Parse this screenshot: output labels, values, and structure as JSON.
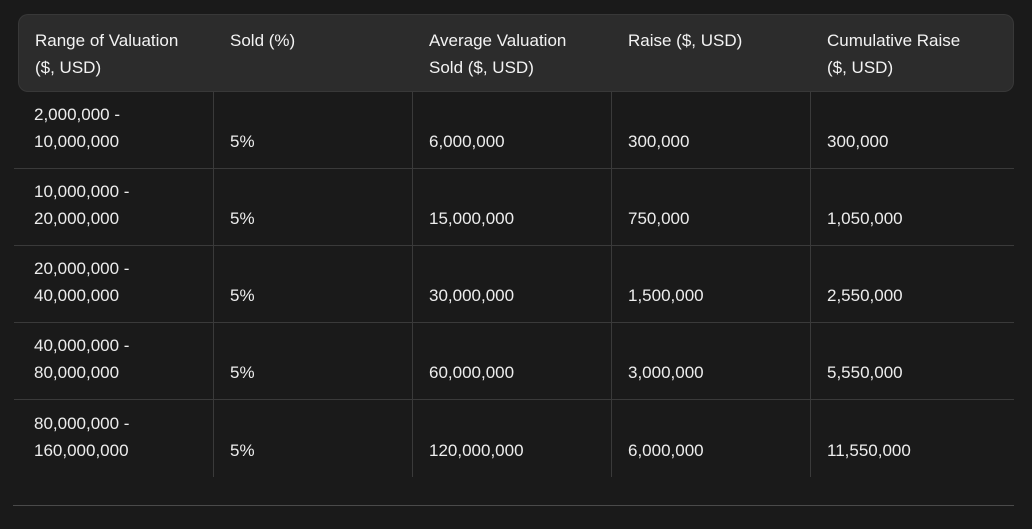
{
  "colors": {
    "page_background": "#1a1a1a",
    "header_background": "#2c2c2c",
    "divider": "#3a3a3a",
    "bottom_rule": "#4a4a4a",
    "text": "#ededed"
  },
  "table": {
    "columns": [
      {
        "label": "Range of Valuation\n($, USD)"
      },
      {
        "label": "Sold (%)"
      },
      {
        "label": "Average Valuation\nSold ($, USD)"
      },
      {
        "label": "Raise ($, USD)"
      },
      {
        "label": "Cumulative Raise\n($, USD)"
      }
    ],
    "rows": [
      {
        "range": "2,000,000 -\n10,000,000",
        "sold": "5%",
        "avg_valuation": "6,000,000",
        "raise": "300,000",
        "cumulative": "300,000"
      },
      {
        "range": "10,000,000 -\n20,000,000",
        "sold": "5%",
        "avg_valuation": "15,000,000",
        "raise": "750,000",
        "cumulative": "1,050,000"
      },
      {
        "range": "20,000,000 -\n40,000,000",
        "sold": "5%",
        "avg_valuation": "30,000,000",
        "raise": "1,500,000",
        "cumulative": "2,550,000"
      },
      {
        "range": "40,000,000 -\n80,000,000",
        "sold": "5%",
        "avg_valuation": "60,000,000",
        "raise": "3,000,000",
        "cumulative": "5,550,000"
      },
      {
        "range": "80,000,000 -\n160,000,000",
        "sold": "5%",
        "avg_valuation": "120,000,000",
        "raise": "6,000,000",
        "cumulative": "11,550,000"
      }
    ]
  },
  "chart_data": {
    "type": "table",
    "title": "",
    "columns": [
      "Range of Valuation ($, USD)",
      "Sold (%)",
      "Average Valuation Sold ($, USD)",
      "Raise ($, USD)",
      "Cumulative Raise ($, USD)"
    ],
    "rows": [
      [
        "2,000,000 - 10,000,000",
        "5%",
        6000000,
        300000,
        300000
      ],
      [
        "10,000,000 - 20,000,000",
        "5%",
        15000000,
        750000,
        1050000
      ],
      [
        "20,000,000 - 40,000,000",
        "5%",
        30000000,
        1500000,
        2550000
      ],
      [
        "40,000,000 - 80,000,000",
        "5%",
        60000000,
        3000000,
        5550000
      ],
      [
        "80,000,000 - 160,000,000",
        "5%",
        120000000,
        6000000,
        11550000
      ]
    ]
  }
}
